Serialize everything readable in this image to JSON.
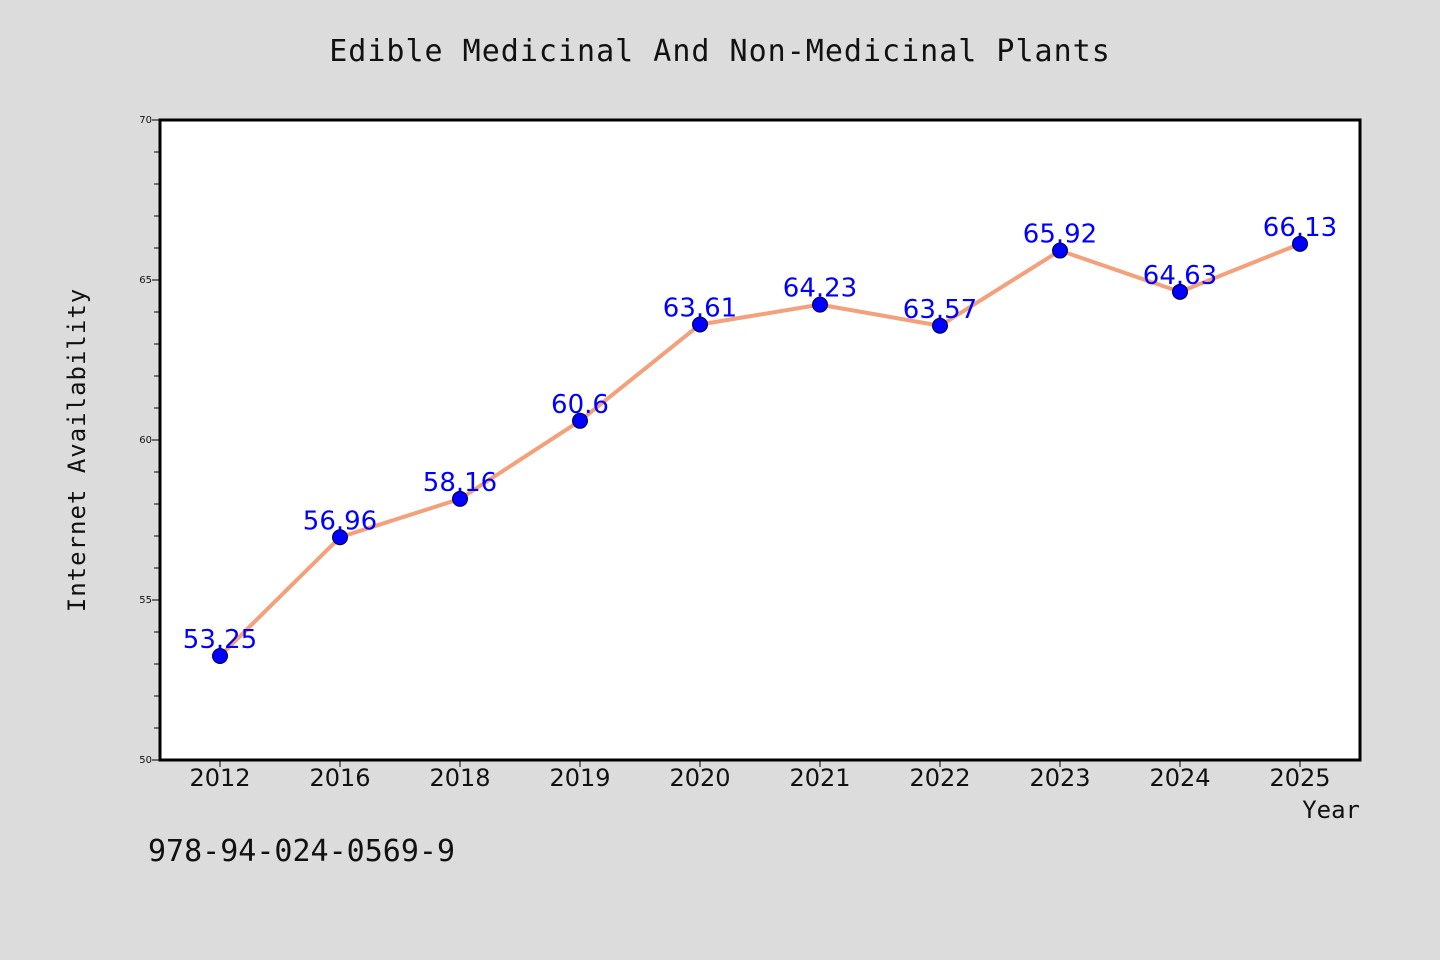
{
  "chart_data": {
    "type": "line",
    "title": "Edible Medicinal And Non-Medicinal Plants",
    "xlabel": "Year",
    "ylabel": "Internet Availability",
    "categories": [
      "2012",
      "2016",
      "2018",
      "2019",
      "2020",
      "2021",
      "2022",
      "2023",
      "2024",
      "2025"
    ],
    "series": [
      {
        "values": [
          53.25,
          56.96,
          58.16,
          60.6,
          63.61,
          64.23,
          63.57,
          65.92,
          64.63,
          66.13
        ],
        "labels": [
          "53.25",
          "56.96",
          "58.16",
          "60.6",
          "63.61",
          "64.23",
          "63.57",
          "65.92",
          "64.63",
          "66.13"
        ],
        "line_color": "#f4a07a",
        "marker_color": "#0000ff"
      }
    ],
    "ylim": [
      50,
      70
    ],
    "yticks": [
      50,
      55,
      60,
      65,
      70
    ],
    "grid": false,
    "legend": "none"
  },
  "footer": {
    "isbn": "978-94-024-0569-9"
  },
  "colors": {
    "background": "#dcdcdc",
    "plot_background": "#ffffff",
    "axis": "#000000"
  }
}
